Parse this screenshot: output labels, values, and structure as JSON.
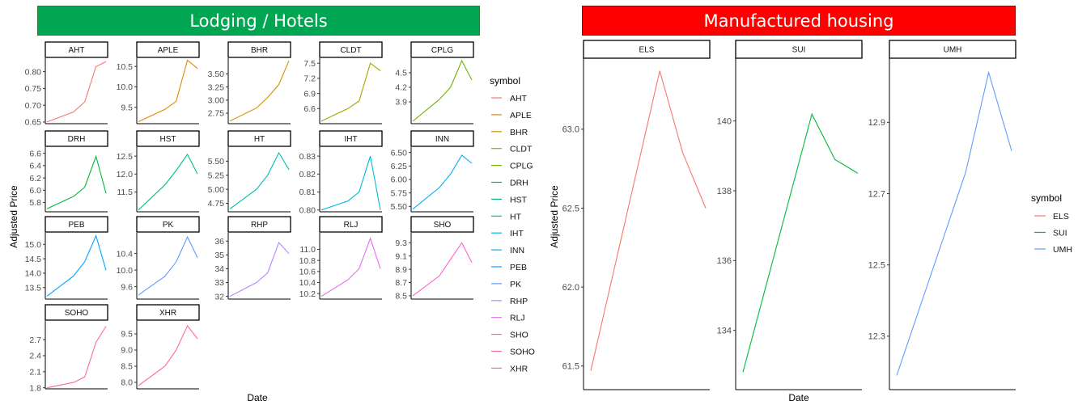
{
  "left": {
    "banner": "Lodging / Hotels",
    "banner_color": "#00a651",
    "xlabel": "Date",
    "ylabel": "Adjusted Price",
    "legend_title": "symbol",
    "legend": [
      {
        "name": "AHT",
        "color": "#F8766D"
      },
      {
        "name": "APLE",
        "color": "#E58700"
      },
      {
        "name": "BHR",
        "color": "#C99800"
      },
      {
        "name": "CLDT",
        "color": "#A3A500"
      },
      {
        "name": "CPLG",
        "color": "#6BB100"
      },
      {
        "name": "DRH",
        "color": "#00BA38"
      },
      {
        "name": "HST",
        "color": "#00BF7D"
      },
      {
        "name": "HT",
        "color": "#00C0AF"
      },
      {
        "name": "IHT",
        "color": "#00BCD8"
      },
      {
        "name": "INN",
        "color": "#00B0F6"
      },
      {
        "name": "PEB",
        "color": "#00A5FF"
      },
      {
        "name": "PK",
        "color": "#619CFF"
      },
      {
        "name": "RHP",
        "color": "#B983FF"
      },
      {
        "name": "RLJ",
        "color": "#E76BF3"
      },
      {
        "name": "SHO",
        "color": "#FD61D1"
      },
      {
        "name": "SOHO",
        "color": "#FF67A4"
      },
      {
        "name": "XHR",
        "color": "#FF6C91"
      }
    ]
  },
  "right": {
    "banner": "Manufactured housing",
    "banner_color": "#ff0000",
    "xlabel": "Date",
    "ylabel": "Adjusted Price",
    "legend_title": "symbol",
    "legend": [
      {
        "name": "ELS",
        "color": "#F8766D"
      },
      {
        "name": "SUI",
        "color": "#00BA38"
      },
      {
        "name": "UMH",
        "color": "#619CFF"
      }
    ]
  },
  "chart_data": [
    {
      "type": "line",
      "title": "Lodging / Hotels",
      "xlabel": "Date",
      "ylabel": "Adjusted Price",
      "facets": [
        {
          "name": "AHT",
          "color": "#F8766D",
          "ylim": [
            0.645,
            0.84
          ],
          "yticks": [
            "0.65",
            "0.70",
            "0.75",
            "0.80"
          ],
          "tick_values": [
            0.65,
            0.7,
            0.75,
            0.8
          ],
          "x": [
            0,
            0.45,
            0.64,
            0.83,
            1
          ],
          "y": [
            0.65,
            0.68,
            0.71,
            0.815,
            0.83
          ]
        },
        {
          "name": "APLE",
          "color": "#E58700",
          "ylim": [
            9.1,
            10.7
          ],
          "yticks": [
            "9.5",
            "10.0",
            "10.5"
          ],
          "tick_values": [
            9.5,
            10.0,
            10.5
          ],
          "x": [
            0,
            0.45,
            0.64,
            0.83,
            1
          ],
          "y": [
            9.15,
            9.45,
            9.65,
            10.65,
            10.45
          ]
        },
        {
          "name": "BHR",
          "color": "#C99800",
          "ylim": [
            2.55,
            3.8
          ],
          "yticks": [
            "2.75",
            "3.00",
            "3.25",
            "3.50"
          ],
          "tick_values": [
            2.75,
            3.0,
            3.25,
            3.5
          ],
          "x": [
            0,
            0.45,
            0.64,
            0.83,
            1
          ],
          "y": [
            2.6,
            2.85,
            3.05,
            3.3,
            3.75
          ]
        },
        {
          "name": "CLDT",
          "color": "#A3A500",
          "ylim": [
            6.3,
            7.6
          ],
          "yticks": [
            "6.6",
            "6.9",
            "7.2",
            "7.5"
          ],
          "tick_values": [
            6.6,
            6.9,
            7.2,
            7.5
          ],
          "x": [
            0,
            0.45,
            0.64,
            0.83,
            1
          ],
          "y": [
            6.35,
            6.6,
            6.75,
            7.5,
            7.35
          ]
        },
        {
          "name": "CPLG",
          "color": "#6BB100",
          "ylim": [
            3.45,
            4.8
          ],
          "yticks": [
            "3.9",
            "4.2",
            "4.5"
          ],
          "tick_values": [
            3.9,
            4.2,
            4.5
          ],
          "x": [
            0,
            0.45,
            0.64,
            0.83,
            1
          ],
          "y": [
            3.5,
            3.95,
            4.2,
            4.75,
            4.35
          ]
        },
        {
          "name": "DRH",
          "color": "#00BA38",
          "ylim": [
            5.65,
            6.7
          ],
          "yticks": [
            "5.8",
            "6.0",
            "6.2",
            "6.4",
            "6.6"
          ],
          "tick_values": [
            5.8,
            6.0,
            6.2,
            6.4,
            6.6
          ],
          "x": [
            0,
            0.45,
            0.64,
            0.83,
            1
          ],
          "y": [
            5.7,
            5.9,
            6.05,
            6.55,
            5.95
          ]
        },
        {
          "name": "HST",
          "color": "#00BF7D",
          "ylim": [
            10.95,
            12.75
          ],
          "yticks": [
            "11.5",
            "12.0",
            "12.5"
          ],
          "tick_values": [
            11.5,
            12.0,
            12.5
          ],
          "x": [
            0,
            0.45,
            0.64,
            0.83,
            1
          ],
          "y": [
            11.0,
            11.7,
            12.1,
            12.55,
            12.0
          ]
        },
        {
          "name": "HT",
          "color": "#00C0AF",
          "ylim": [
            4.6,
            5.75
          ],
          "yticks": [
            "4.75",
            "5.00",
            "5.25",
            "5.50"
          ],
          "tick_values": [
            4.75,
            5.0,
            5.25,
            5.5
          ],
          "x": [
            0,
            0.45,
            0.64,
            0.83,
            1
          ],
          "y": [
            4.65,
            5.0,
            5.25,
            5.65,
            5.35
          ]
        },
        {
          "name": "IHT",
          "color": "#00BCD8",
          "ylim": [
            0.799,
            0.835
          ],
          "yticks": [
            "0.80",
            "0.81",
            "0.82",
            "0.83"
          ],
          "tick_values": [
            0.8,
            0.81,
            0.82,
            0.83
          ],
          "x": [
            0,
            0.45,
            0.64,
            0.83,
            1
          ],
          "y": [
            0.8,
            0.805,
            0.81,
            0.83,
            0.8
          ]
        },
        {
          "name": "INN",
          "color": "#00B0F6",
          "ylim": [
            5.4,
            6.6
          ],
          "yticks": [
            "5.50",
            "5.75",
            "6.00",
            "6.25",
            "6.50"
          ],
          "tick_values": [
            5.5,
            5.75,
            6.0,
            6.25,
            6.5
          ],
          "x": [
            0,
            0.45,
            0.64,
            0.83,
            1
          ],
          "y": [
            5.45,
            5.85,
            6.1,
            6.45,
            6.3
          ]
        },
        {
          "name": "PEB",
          "color": "#00A5FF",
          "ylim": [
            13.1,
            15.4
          ],
          "yticks": [
            "13.5",
            "14.0",
            "14.5",
            "15.0"
          ],
          "tick_values": [
            13.5,
            14.0,
            14.5,
            15.0
          ],
          "x": [
            0,
            0.45,
            0.64,
            0.83,
            1
          ],
          "y": [
            13.2,
            13.9,
            14.4,
            15.3,
            14.1
          ]
        },
        {
          "name": "PK",
          "color": "#619CFF",
          "ylim": [
            9.3,
            10.9
          ],
          "yticks": [
            "9.6",
            "10.0",
            "10.4"
          ],
          "tick_values": [
            9.6,
            10.0,
            10.4
          ],
          "x": [
            0,
            0.45,
            0.64,
            0.83,
            1
          ],
          "y": [
            9.4,
            9.85,
            10.2,
            10.8,
            10.3
          ]
        },
        {
          "name": "RHP",
          "color": "#B983FF",
          "ylim": [
            31.8,
            36.6
          ],
          "yticks": [
            "32",
            "33",
            "34",
            "35",
            "36"
          ],
          "tick_values": [
            32,
            33,
            34,
            35,
            36
          ],
          "x": [
            0,
            0.45,
            0.64,
            0.83,
            1
          ],
          "y": [
            32.0,
            33.0,
            33.7,
            35.9,
            35.1
          ]
        },
        {
          "name": "RLJ",
          "color": "#E76BF3",
          "ylim": [
            10.1,
            11.3
          ],
          "yticks": [
            "10.2",
            "10.4",
            "10.6",
            "10.8",
            "11.0"
          ],
          "tick_values": [
            10.2,
            10.4,
            10.6,
            10.8,
            11.0
          ],
          "x": [
            0,
            0.45,
            0.64,
            0.83,
            1
          ],
          "y": [
            10.15,
            10.45,
            10.65,
            11.2,
            10.65
          ]
        },
        {
          "name": "SHO",
          "color": "#FD61D1",
          "ylim": [
            8.45,
            9.45
          ],
          "yticks": [
            "8.5",
            "8.7",
            "8.9",
            "9.1",
            "9.3"
          ],
          "tick_values": [
            8.5,
            8.7,
            8.9,
            9.1,
            9.3
          ],
          "x": [
            0,
            0.45,
            0.64,
            0.83,
            1
          ],
          "y": [
            8.5,
            8.8,
            9.05,
            9.3,
            9.0
          ]
        },
        {
          "name": "SOHO",
          "color": "#FF67A4",
          "ylim": [
            1.78,
            3.05
          ],
          "yticks": [
            "1.8",
            "2.1",
            "2.4",
            "2.7"
          ],
          "tick_values": [
            1.8,
            2.1,
            2.4,
            2.7
          ],
          "x": [
            0,
            0.45,
            0.64,
            0.83,
            1
          ],
          "y": [
            1.8,
            1.9,
            2.0,
            2.65,
            2.95
          ]
        },
        {
          "name": "XHR",
          "color": "#FF6C91",
          "ylim": [
            7.8,
            9.9
          ],
          "yticks": [
            "8.0",
            "8.5",
            "9.0",
            "9.5"
          ],
          "tick_values": [
            8.0,
            8.5,
            9.0,
            9.5
          ],
          "x": [
            0,
            0.45,
            0.64,
            0.83,
            1
          ],
          "y": [
            7.9,
            8.5,
            9.0,
            9.75,
            9.35
          ]
        }
      ]
    },
    {
      "type": "line",
      "title": "Manufactured housing",
      "xlabel": "Date",
      "ylabel": "Adjusted Price",
      "facets": [
        {
          "name": "ELS",
          "color": "#F8766D",
          "ylim": [
            61.35,
            63.45
          ],
          "yticks": [
            "61.5",
            "62.0",
            "62.5",
            "63.0"
          ],
          "tick_values": [
            61.5,
            62.0,
            62.5,
            63.0
          ],
          "x": [
            0,
            0.6,
            0.8,
            1
          ],
          "y": [
            61.47,
            63.37,
            62.85,
            62.5
          ]
        },
        {
          "name": "SUI",
          "color": "#00BA38",
          "ylim": [
            132.3,
            141.8
          ],
          "yticks": [
            "134",
            "136",
            "138",
            "140"
          ],
          "tick_values": [
            134,
            136,
            138,
            140
          ],
          "x": [
            0,
            0.6,
            0.8,
            1
          ],
          "y": [
            132.8,
            140.2,
            138.9,
            138.5
          ]
        },
        {
          "name": "UMH",
          "color": "#619CFF",
          "ylim": [
            12.15,
            13.08
          ],
          "yticks": [
            "12.3",
            "12.5",
            "12.7",
            "12.9"
          ],
          "tick_values": [
            12.3,
            12.5,
            12.7,
            12.9
          ],
          "x": [
            0,
            0.6,
            0.8,
            1
          ],
          "y": [
            12.19,
            12.76,
            13.04,
            12.82
          ]
        }
      ]
    }
  ]
}
